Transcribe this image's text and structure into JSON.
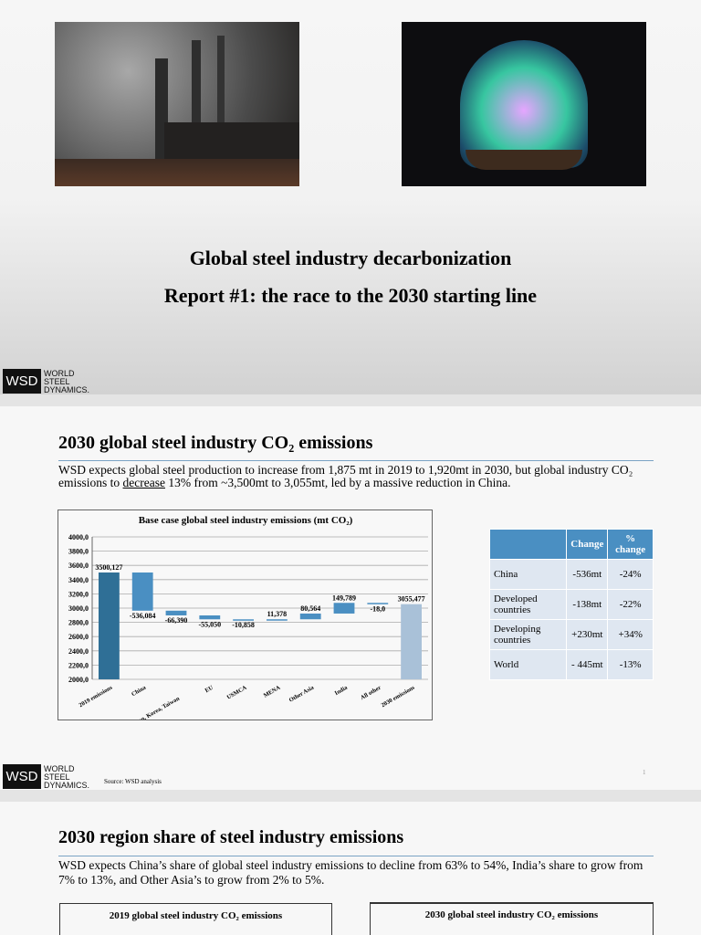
{
  "logo": {
    "mark": "WSD",
    "lines": [
      "WORLD",
      "STEEL",
      "DYNAMICS."
    ]
  },
  "slide1": {
    "title_lines": [
      "Global steel industry decarbonization",
      "Report #1: the race to the 2030 starting line"
    ]
  },
  "slide2": {
    "title": "2030 global steel industry CO₂ emissions",
    "text_parts": [
      "WSD expects global steel production to increase from 1,875 mt in 2019 to 1,920mt in 2030, but global industry CO₂ emissions to ",
      "decrease",
      " 13% from ~3,500mt to 3,055mt, led by a massive reduction in China."
    ],
    "chart_data": {
      "type": "waterfall",
      "title": "Base case global steel industry emissions (mt CO₂)",
      "categories": [
        "2019 emissions",
        "China",
        "Japan, Korea, Taiwan",
        "EU",
        "USMCA",
        "MENA",
        "Other Asia",
        "India",
        "All other",
        "2030 emissions"
      ],
      "values": [
        3500.127,
        -536.084,
        -66.39,
        -55.05,
        -10.858,
        11.378,
        80.564,
        149.789,
        -18.0,
        3055.477
      ],
      "value_labels": [
        "3500,127",
        "-536,084",
        "-66,390",
        "-55,050",
        "-10,858",
        "11,378",
        "80,564",
        "149,789",
        "-18,0",
        "3055,477"
      ],
      "colors": {
        "start": "#2f6f96",
        "change": "#4a8fc2",
        "end": "#a9c1d8"
      },
      "ylim": [
        2000,
        4000
      ],
      "yticks": [
        {
          "value": 2000,
          "label": "2000,0"
        },
        {
          "value": 2200,
          "label": "2200,0"
        },
        {
          "value": 2400,
          "label": "2400,0"
        },
        {
          "value": 2600,
          "label": "2600,0"
        },
        {
          "value": 2800,
          "label": "2800,0"
        },
        {
          "value": 3000,
          "label": "3000,0"
        },
        {
          "value": 3200,
          "label": "3200,0"
        },
        {
          "value": 3400,
          "label": "3400,0"
        },
        {
          "value": 3600,
          "label": "3600,0"
        },
        {
          "value": 3800,
          "label": "3800,0"
        },
        {
          "value": 4000,
          "label": "4000,0"
        }
      ],
      "grid": true
    },
    "table": {
      "header": [
        "Change",
        "% change"
      ],
      "rows": [
        [
          "China",
          "-536mt",
          "-24%"
        ],
        [
          "Developed countries",
          "-138mt",
          "-22%"
        ],
        [
          "Developing countries",
          "+230mt",
          "+34%"
        ],
        [
          "World",
          "- 445mt",
          "-13%"
        ]
      ]
    },
    "source": "Source: WSD analysis",
    "page_number": "1"
  },
  "slide3": {
    "title": "2030 region share of steel industry emissions",
    "text": "WSD expects China’s share of global steel industry emissions to decline from 63% to 54%, India’s share to grow from 7% to 13%, and Other Asia’s to grow from 2% to 5%.",
    "box_titles": [
      "2019 global steel industry CO₂ emissions",
      "2030 global steel industry CO₂ emissions"
    ]
  }
}
